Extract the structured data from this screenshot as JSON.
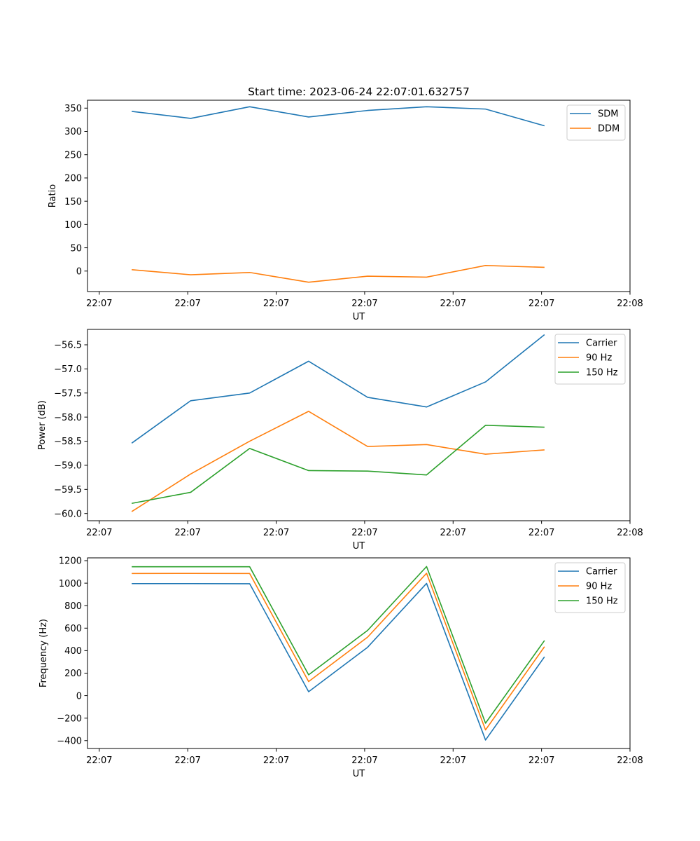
{
  "colors": {
    "blue": "#1f77b4",
    "orange": "#ff7f0e",
    "green": "#2ca02c"
  },
  "chart_data": [
    {
      "type": "line",
      "title": "Start time: 2023-06-24 22:07:01.632757",
      "xlabel": "UT",
      "ylabel": "Ratio",
      "x": [
        1,
        2,
        3,
        4,
        5,
        6,
        7,
        8
      ],
      "x_unit": "sample index between tick marks",
      "xlim": [
        0.25,
        9.45
      ],
      "xticks": [
        0.45,
        1.95,
        3.45,
        4.95,
        6.45,
        7.95,
        9.45
      ],
      "xtick_labels": [
        "22:07",
        "22:07",
        "22:07",
        "22:07",
        "22:07",
        "22:07",
        "22:08"
      ],
      "ylim": [
        -44,
        367
      ],
      "yticks": [
        0,
        50,
        100,
        150,
        200,
        250,
        300,
        350
      ],
      "ytick_labels": [
        "0",
        "50",
        "100",
        "150",
        "200",
        "250",
        "300",
        "350"
      ],
      "legend_position": "top-right",
      "grid": false,
      "series": [
        {
          "name": "SDM",
          "color": "#1f77b4",
          "values": [
            343,
            328,
            353,
            331,
            345,
            353,
            348,
            312
          ]
        },
        {
          "name": "DDM",
          "color": "#ff7f0e",
          "values": [
            3,
            -8,
            -3,
            -24,
            -11,
            -13,
            12,
            8
          ]
        }
      ]
    },
    {
      "type": "line",
      "title": "",
      "xlabel": "UT",
      "ylabel": "Power (dB)",
      "x": [
        1,
        2,
        3,
        4,
        5,
        6,
        7,
        8
      ],
      "xlim": [
        0.25,
        9.45
      ],
      "xticks": [
        0.45,
        1.95,
        3.45,
        4.95,
        6.45,
        7.95,
        9.45
      ],
      "xtick_labels": [
        "22:07",
        "22:07",
        "22:07",
        "22:07",
        "22:07",
        "22:07",
        "22:08"
      ],
      "ylim": [
        -60.15,
        -56.18
      ],
      "yticks": [
        -60.0,
        -59.5,
        -59.0,
        -58.5,
        -58.0,
        -57.5,
        -57.0,
        -56.5
      ],
      "ytick_labels": [
        "−60.0",
        "−59.5",
        "−59.0",
        "−58.5",
        "−58.0",
        "−57.5",
        "−57.0",
        "−56.5"
      ],
      "legend_position": "top-right",
      "grid": false,
      "series": [
        {
          "name": "Carrier",
          "color": "#1f77b4",
          "values": [
            -58.54,
            -57.66,
            -57.5,
            -56.84,
            -57.59,
            -57.79,
            -57.27,
            -56.29
          ]
        },
        {
          "name": "90 Hz",
          "color": "#ff7f0e",
          "values": [
            -59.96,
            -59.18,
            -58.5,
            -57.88,
            -58.61,
            -58.57,
            -58.77,
            -58.68
          ]
        },
        {
          "name": "150 Hz",
          "color": "#2ca02c",
          "values": [
            -59.79,
            -59.56,
            -58.65,
            -59.11,
            -59.12,
            -59.2,
            -58.17,
            -58.21
          ]
        }
      ]
    },
    {
      "type": "line",
      "title": "",
      "xlabel": "UT",
      "ylabel": "Frequency (Hz)",
      "x": [
        1,
        2,
        3,
        4,
        5,
        6,
        7,
        8
      ],
      "xlim": [
        0.25,
        9.45
      ],
      "xticks": [
        0.45,
        1.95,
        3.45,
        4.95,
        6.45,
        7.95,
        9.45
      ],
      "xtick_labels": [
        "22:07",
        "22:07",
        "22:07",
        "22:07",
        "22:07",
        "22:07",
        "22:08"
      ],
      "ylim": [
        -470,
        1225
      ],
      "yticks": [
        -400,
        -200,
        0,
        200,
        400,
        600,
        800,
        1000,
        1200
      ],
      "ytick_labels": [
        "−400",
        "−200",
        "0",
        "200",
        "400",
        "600",
        "800",
        "1000",
        "1200"
      ],
      "legend_position": "top-right",
      "grid": false,
      "series": [
        {
          "name": "Carrier",
          "color": "#1f77b4",
          "values": [
            996,
            996,
            995,
            35,
            430,
            998,
            -395,
            345
          ]
        },
        {
          "name": "90 Hz",
          "color": "#ff7f0e",
          "values": [
            1086,
            1087,
            1086,
            125,
            520,
            1088,
            -305,
            435
          ]
        },
        {
          "name": "150 Hz",
          "color": "#2ca02c",
          "values": [
            1146,
            1146,
            1146,
            185,
            580,
            1148,
            -245,
            490
          ]
        }
      ]
    }
  ]
}
